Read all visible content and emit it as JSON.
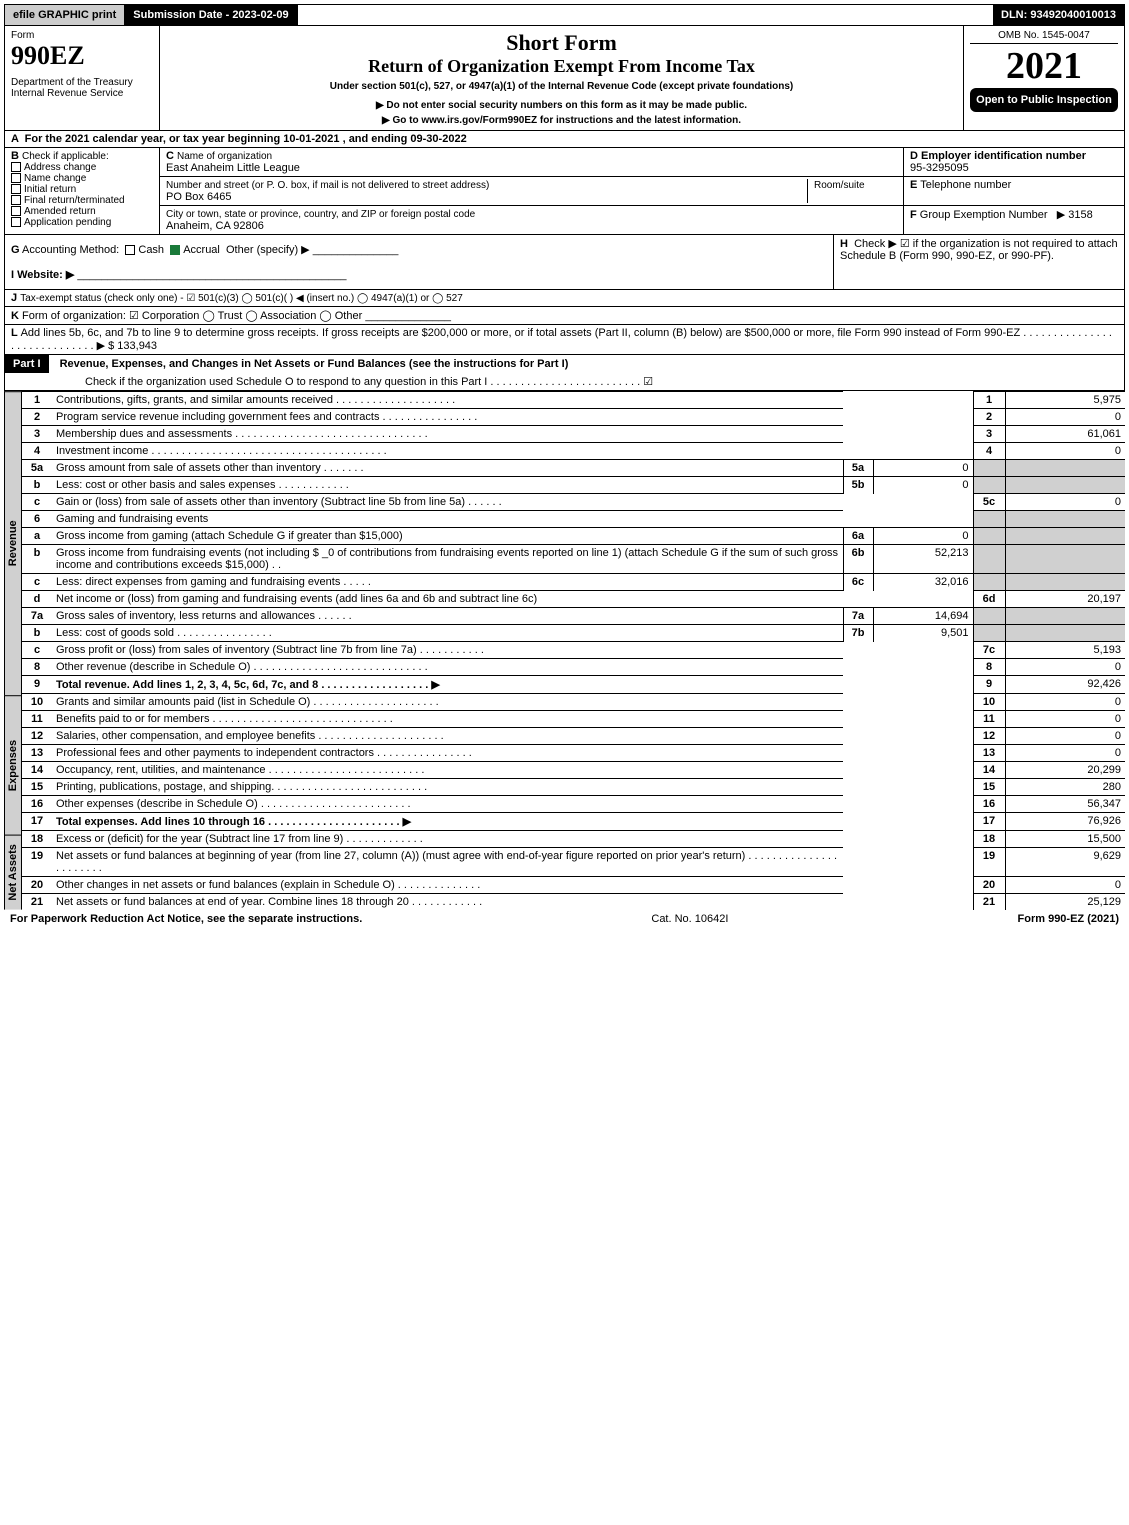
{
  "topbar": {
    "efile": "efile GRAPHIC print",
    "subdate": "Submission Date - 2023-02-09",
    "dln": "DLN: 93492040010013"
  },
  "header": {
    "form_word": "Form",
    "form_num": "990EZ",
    "dept1": "Department of the Treasury",
    "dept2": "Internal Revenue Service",
    "title": "Short Form",
    "subtitle": "Return of Organization Exempt From Income Tax",
    "under": "Under section 501(c), 527, or 4947(a)(1) of the Internal Revenue Code (except private foundations)",
    "warn": "▶ Do not enter social security numbers on this form as it may be made public.",
    "goto": "▶ Go to www.irs.gov/Form990EZ for instructions and the latest information.",
    "omb": "OMB No. 1545-0047",
    "year": "2021",
    "open": "Open to Public Inspection"
  },
  "A": {
    "text": "For the 2021 calendar year, or tax year beginning 10-01-2021 , and ending 09-30-2022"
  },
  "B": {
    "label": "Check if applicable:",
    "opts": [
      "Address change",
      "Name change",
      "Initial return",
      "Final return/terminated",
      "Amended return",
      "Application pending"
    ]
  },
  "C": {
    "name_label": "Name of organization",
    "name": "East Anaheim Little League",
    "street_label": "Number and street (or P. O. box, if mail is not delivered to street address)",
    "room_label": "Room/suite",
    "street": "PO Box 6465",
    "city_label": "City or town, state or province, country, and ZIP or foreign postal code",
    "city": "Anaheim, CA  92806"
  },
  "D": {
    "label": "Employer identification number",
    "val": "95-3295095"
  },
  "E": {
    "label": "Telephone number",
    "val": ""
  },
  "F": {
    "label": "Group Exemption Number",
    "val": "▶ 3158"
  },
  "G": {
    "label": "Accounting Method:",
    "cash": "Cash",
    "accrual": "Accrual",
    "other": "Other (specify) ▶"
  },
  "H": {
    "text": "Check ▶ ☑ if the organization is not required to attach Schedule B (Form 990, 990-EZ, or 990-PF)."
  },
  "I": {
    "label": "Website: ▶"
  },
  "J": {
    "text": "Tax-exempt status (check only one) - ☑ 501(c)(3)  ◯ 501(c)(  ) ◀ (insert no.)  ◯ 4947(a)(1) or  ◯ 527"
  },
  "K": {
    "text": "Form of organization:  ☑ Corporation   ◯ Trust   ◯ Association   ◯ Other"
  },
  "L": {
    "text": "Add lines 5b, 6c, and 7b to line 9 to determine gross receipts. If gross receipts are $200,000 or more, or if total assets (Part II, column (B) below) are $500,000 or more, file Form 990 instead of Form 990-EZ  .  .  .  .  .  .  .  .  .  .  .  .  .  .  .  .  .  .  .  .  .  .  .  .  .  .  .  .  .",
    "amount": "▶ $ 133,943"
  },
  "part1": {
    "title": "Part I",
    "heading": "Revenue, Expenses, and Changes in Net Assets or Fund Balances (see the instructions for Part I)",
    "check": "Check if the organization used Schedule O to respond to any question in this Part I  .  .  .  .  .  .  .  .  .  .  .  .  .  .  .  .  .  .  .  .  .  .  .  .  .   ☑"
  },
  "sections": {
    "revenue": "Revenue",
    "expenses": "Expenses",
    "netassets": "Net Assets"
  },
  "lines": [
    {
      "n": "1",
      "d": "Contributions, gifts, grants, and similar amounts received  .  .  .  .  .  .  .  .  .  .  .  .  .  .  .  .  .  .  .  .",
      "rn": "1",
      "rv": "5,975"
    },
    {
      "n": "2",
      "d": "Program service revenue including government fees and contracts  .  .  .  .  .  .  .  .  .  .  .  .  .  .  .  .",
      "rn": "2",
      "rv": "0"
    },
    {
      "n": "3",
      "d": "Membership dues and assessments  .  .  .  .  .  .  .  .  .  .  .  .  .  .  .  .  .  .  .  .  .  .  .  .  .  .  .  .  .  .  .  .",
      "rn": "3",
      "rv": "61,061"
    },
    {
      "n": "4",
      "d": "Investment income  .  .  .  .  .  .  .  .  .  .  .  .  .  .  .  .  .  .  .  .  .  .  .  .  .  .  .  .  .  .  .  .  .  .  .  .  .  .  .",
      "rn": "4",
      "rv": "0"
    },
    {
      "n": "5a",
      "d": "Gross amount from sale of assets other than inventory  .  .  .  .  .  .  .",
      "sn": "5a",
      "sv": "0",
      "shade": true
    },
    {
      "n": "b",
      "d": "Less: cost or other basis and sales expenses  .  .  .  .  .  .  .  .  .  .  .  .",
      "sn": "5b",
      "sv": "0",
      "shade": true
    },
    {
      "n": "c",
      "d": "Gain or (loss) from sale of assets other than inventory (Subtract line 5b from line 5a)  .  .  .  .  .  .",
      "rn": "5c",
      "rv": "0"
    },
    {
      "n": "6",
      "d": "Gaming and fundraising events",
      "shade": true
    },
    {
      "n": "a",
      "d": "Gross income from gaming (attach Schedule G if greater than $15,000)",
      "sn": "6a",
      "sv": "0",
      "shade": true
    },
    {
      "n": "b",
      "d": "Gross income from fundraising events (not including $ _0    of contributions from fundraising events reported on line 1) (attach Schedule G if the sum of such gross income and contributions exceeds $15,000)    .  .",
      "sn": "6b",
      "sv": "52,213",
      "shade": true
    },
    {
      "n": "c",
      "d": "Less: direct expenses from gaming and fundraising events  .  .  .  .  .",
      "sn": "6c",
      "sv": "32,016",
      "shade": true
    },
    {
      "n": "d",
      "d": "Net income or (loss) from gaming and fundraising events (add lines 6a and 6b and subtract line 6c)",
      "rn": "6d",
      "rv": "20,197"
    },
    {
      "n": "7a",
      "d": "Gross sales of inventory, less returns and allowances  .  .  .  .  .  .",
      "sn": "7a",
      "sv": "14,694",
      "shade": true
    },
    {
      "n": "b",
      "d": "Less: cost of goods sold        .  .  .  .  .  .  .  .  .  .  .  .  .  .  .  .",
      "sn": "7b",
      "sv": "9,501",
      "shade": true
    },
    {
      "n": "c",
      "d": "Gross profit or (loss) from sales of inventory (Subtract line 7b from line 7a)  .  .  .  .  .  .  .  .  .  .  .",
      "rn": "7c",
      "rv": "5,193"
    },
    {
      "n": "8",
      "d": "Other revenue (describe in Schedule O)  .  .  .  .  .  .  .  .  .  .  .  .  .  .  .  .  .  .  .  .  .  .  .  .  .  .  .  .  .",
      "rn": "8",
      "rv": "0"
    },
    {
      "n": "9",
      "d": "Total revenue. Add lines 1, 2, 3, 4, 5c, 6d, 7c, and 8  .  .  .  .  .  .  .  .  .  .  .  .  .  .  .  .  .  .        ▶",
      "rn": "9",
      "rv": "92,426",
      "bold": true
    }
  ],
  "exp_lines": [
    {
      "n": "10",
      "d": "Grants and similar amounts paid (list in Schedule O)  .  .  .  .  .  .  .  .  .  .  .  .  .  .  .  .  .  .  .  .  .",
      "rn": "10",
      "rv": "0"
    },
    {
      "n": "11",
      "d": "Benefits paid to or for members    .  .  .  .  .  .  .  .  .  .  .  .  .  .  .  .  .  .  .  .  .  .  .  .  .  .  .  .  .  .",
      "rn": "11",
      "rv": "0"
    },
    {
      "n": "12",
      "d": "Salaries, other compensation, and employee benefits  .  .  .  .  .  .  .  .  .  .  .  .  .  .  .  .  .  .  .  .  .",
      "rn": "12",
      "rv": "0"
    },
    {
      "n": "13",
      "d": "Professional fees and other payments to independent contractors  .  .  .  .  .  .  .  .  .  .  .  .  .  .  .  .",
      "rn": "13",
      "rv": "0"
    },
    {
      "n": "14",
      "d": "Occupancy, rent, utilities, and maintenance  .  .  .  .  .  .  .  .  .  .  .  .  .  .  .  .  .  .  .  .  .  .  .  .  .  .",
      "rn": "14",
      "rv": "20,299"
    },
    {
      "n": "15",
      "d": "Printing, publications, postage, and shipping.  .  .  .  .  .  .  .  .  .  .  .  .  .  .  .  .  .  .  .  .  .  .  .  .  .",
      "rn": "15",
      "rv": "280"
    },
    {
      "n": "16",
      "d": "Other expenses (describe in Schedule O)    .  .  .  .  .  .  .  .  .  .  .  .  .  .  .  .  .  .  .  .  .  .  .  .  .",
      "rn": "16",
      "rv": "56,347"
    },
    {
      "n": "17",
      "d": "Total expenses. Add lines 10 through 16    .  .  .  .  .  .  .  .  .  .  .  .  .  .  .  .  .  .  .  .  .  .    ▶",
      "rn": "17",
      "rv": "76,926",
      "bold": true
    }
  ],
  "na_lines": [
    {
      "n": "18",
      "d": "Excess or (deficit) for the year (Subtract line 17 from line 9)       .  .  .  .  .  .  .  .  .  .  .  .  .",
      "rn": "18",
      "rv": "15,500"
    },
    {
      "n": "19",
      "d": "Net assets or fund balances at beginning of year (from line 27, column (A)) (must agree with end-of-year figure reported on prior year's return)  .  .  .  .  .  .  .  .  .  .  .  .  .  .  .  .  .  .  .  .  .  .  .",
      "rn": "19",
      "rv": "9,629"
    },
    {
      "n": "20",
      "d": "Other changes in net assets or fund balances (explain in Schedule O)  .  .  .  .  .  .  .  .  .  .  .  .  .  .",
      "rn": "20",
      "rv": "0"
    },
    {
      "n": "21",
      "d": "Net assets or fund balances at end of year. Combine lines 18 through 20  .  .  .  .  .  .  .  .  .  .  .  .",
      "rn": "21",
      "rv": "25,129"
    }
  ],
  "footer": {
    "left": "For Paperwork Reduction Act Notice, see the separate instructions.",
    "mid": "Cat. No. 10642I",
    "right": "Form 990-EZ (2021)"
  }
}
